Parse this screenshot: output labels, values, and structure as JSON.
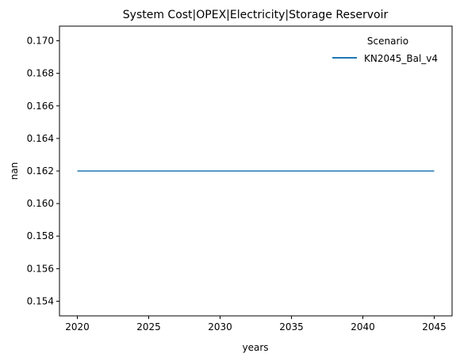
{
  "chart_data": {
    "type": "line",
    "title": "System Cost|OPEX|Electricity|Storage Reservoir",
    "xlabel": "years",
    "ylabel": "nan",
    "x": [
      2020,
      2025,
      2030,
      2035,
      2040,
      2045
    ],
    "series": [
      {
        "name": "KN2045_Bal_v4",
        "color": "#1f77b4",
        "values": [
          0.162,
          0.162,
          0.162,
          0.162,
          0.162,
          0.162
        ]
      }
    ],
    "xticks": [
      "2020",
      "2025",
      "2030",
      "2035",
      "2040",
      "2045"
    ],
    "yticks": [
      "0.154",
      "0.156",
      "0.158",
      "0.160",
      "0.162",
      "0.164",
      "0.166",
      "0.168",
      "0.170"
    ],
    "xlim": [
      2018.75,
      2046.25
    ],
    "ylim": [
      0.1531,
      0.1709
    ],
    "grid": false,
    "legend": {
      "title": "Scenario",
      "position": "top-right"
    }
  }
}
